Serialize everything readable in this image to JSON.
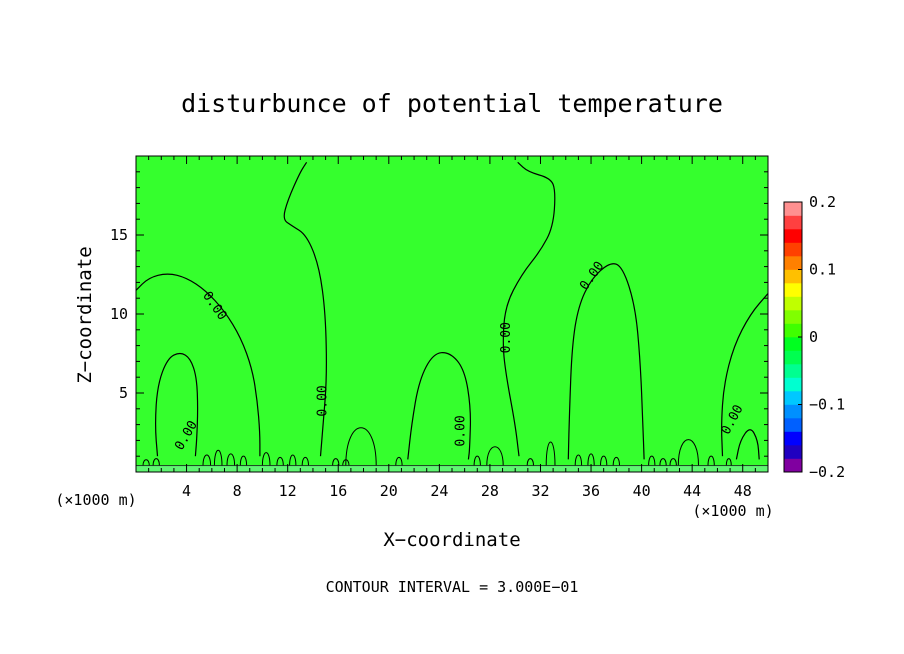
{
  "chart_data": {
    "type": "contour",
    "title": "disturbunce of potential temperature",
    "xlabel": "X−coordinate",
    "ylabel": "Z−coordinate",
    "x_unit": "(×1000 m)",
    "x_unit_right": "(×1000 m)",
    "xlim": [
      0,
      50
    ],
    "ylim": [
      0,
      20
    ],
    "x_ticks": [
      4,
      8,
      12,
      16,
      20,
      24,
      28,
      32,
      36,
      40,
      44,
      48
    ],
    "y_ticks": [
      5,
      10,
      15
    ],
    "footer": "CONTOUR INTERVAL = 3.000E−01",
    "contour_label": "0.00",
    "colorbar": {
      "ticks": [
        {
          "value": 0.2,
          "label": "0.2"
        },
        {
          "value": 0.1,
          "label": "0.1"
        },
        {
          "value": 0,
          "label": "0"
        },
        {
          "value": -0.1,
          "label": "−0.1"
        },
        {
          "value": -0.2,
          "label": "−0.2"
        }
      ],
      "colors": [
        "#8000a0",
        "#2000c0",
        "#0000ff",
        "#0060ff",
        "#0090ff",
        "#00c8ff",
        "#00ffd0",
        "#00ff90",
        "#00ff50",
        "#00ff20",
        "#40ff00",
        "#80ff00",
        "#c0ff00",
        "#ffff00",
        "#ffc000",
        "#ff8000",
        "#ff4000",
        "#ff0000",
        "#ff4040",
        "#ff9090"
      ]
    },
    "background_color": "#35ff2d",
    "contours": [
      {
        "name": "left-arc",
        "points": [
          [
            0,
            11.5
          ],
          [
            1,
            12.3
          ],
          [
            2.5,
            12.6
          ],
          [
            4,
            12.3
          ],
          [
            5.5,
            11.5
          ],
          [
            7,
            10.2
          ],
          [
            8.3,
            8.5
          ],
          [
            9.2,
            6.5
          ],
          [
            9.6,
            4.5
          ],
          [
            9.8,
            2.5
          ],
          [
            9.8,
            1
          ]
        ],
        "labels": [
          {
            "x": 6.2,
            "y": 10.5,
            "angle": 55
          }
        ]
      },
      {
        "name": "loop-4",
        "points": [
          [
            1.7,
            1
          ],
          [
            1.5,
            3
          ],
          [
            1.7,
            5.5
          ],
          [
            2.5,
            7.2
          ],
          [
            3.5,
            7.6
          ],
          [
            4.3,
            7.2
          ],
          [
            4.8,
            6
          ],
          [
            4.9,
            4
          ],
          [
            4.8,
            2
          ],
          [
            4.7,
            1
          ]
        ],
        "labels": [
          {
            "x": 4,
            "y": 2.3,
            "angle": -60
          }
        ]
      },
      {
        "name": "line-14",
        "points": [
          [
            13.5,
            19.6
          ],
          [
            13,
            19
          ],
          [
            12,
            17.2
          ],
          [
            11.6,
            16
          ],
          [
            12.3,
            15.6
          ],
          [
            13.5,
            15
          ],
          [
            14.5,
            13
          ],
          [
            15,
            10
          ],
          [
            15.1,
            6
          ],
          [
            14.8,
            3
          ],
          [
            14.6,
            1
          ]
        ],
        "labels": [
          {
            "x": 14.8,
            "y": 4.5,
            "angle": -90
          }
        ]
      },
      {
        "name": "loop-24",
        "points": [
          [
            21.5,
            0.8
          ],
          [
            21.8,
            3
          ],
          [
            22.4,
            5.8
          ],
          [
            23.5,
            7.5
          ],
          [
            24.8,
            7.6
          ],
          [
            26,
            6.5
          ],
          [
            26.5,
            4
          ],
          [
            26.4,
            1.5
          ],
          [
            26.3,
            0.8
          ]
        ],
        "labels": [
          {
            "x": 25.7,
            "y": 2.6,
            "angle": -90
          }
        ]
      },
      {
        "name": "line-30",
        "points": [
          [
            30.2,
            19.6
          ],
          [
            31,
            19
          ],
          [
            32.8,
            18.6
          ],
          [
            33.2,
            17.8
          ],
          [
            33,
            15.5
          ],
          [
            32,
            14
          ],
          [
            30.5,
            12.5
          ],
          [
            29.2,
            10.5
          ],
          [
            29,
            8
          ],
          [
            29.3,
            6
          ],
          [
            30,
            3
          ],
          [
            30.3,
            1
          ]
        ],
        "labels": [
          {
            "x": 29.3,
            "y": 8.5,
            "angle": -90
          }
        ]
      },
      {
        "name": "loop-38",
        "points": [
          [
            34.2,
            0.8
          ],
          [
            34.3,
            4
          ],
          [
            34.5,
            8
          ],
          [
            35,
            10.5
          ],
          [
            36,
            12.2
          ],
          [
            37.5,
            13.3
          ],
          [
            38.5,
            13
          ],
          [
            39.5,
            10.5
          ],
          [
            39.9,
            7
          ],
          [
            40.1,
            3
          ],
          [
            40.2,
            0.8
          ]
        ],
        "labels": [
          {
            "x": 36.1,
            "y": 12.4,
            "angle": -55
          }
        ]
      },
      {
        "name": "right-arc",
        "points": [
          [
            50,
            11.3
          ],
          [
            48.6,
            10
          ],
          [
            47.3,
            8
          ],
          [
            46.5,
            5.5
          ],
          [
            46.3,
            3
          ],
          [
            46.4,
            1
          ]
        ],
        "labels": [
          {
            "x": 47.2,
            "y": 3.3,
            "angle": -62
          }
        ]
      },
      {
        "name": "loop-48",
        "points": [
          [
            47.5,
            0.8
          ],
          [
            47.8,
            2
          ],
          [
            48.6,
            2.9
          ],
          [
            49.2,
            2
          ],
          [
            49.3,
            0.8
          ]
        ],
        "labels": []
      }
    ],
    "small_bumps": [
      {
        "x": 0.8,
        "w": 0.5,
        "h": 0.5
      },
      {
        "x": 1.6,
        "w": 0.5,
        "h": 0.6
      },
      {
        "x": 5.6,
        "w": 0.6,
        "h": 0.9
      },
      {
        "x": 6.5,
        "w": 0.6,
        "h": 1.3
      },
      {
        "x": 7.5,
        "w": 0.6,
        "h": 1.0
      },
      {
        "x": 8.5,
        "w": 0.5,
        "h": 0.8
      },
      {
        "x": 10.3,
        "w": 0.6,
        "h": 1.1
      },
      {
        "x": 11.4,
        "w": 0.5,
        "h": 0.7
      },
      {
        "x": 12.4,
        "w": 0.5,
        "h": 0.9
      },
      {
        "x": 13.4,
        "w": 0.5,
        "h": 0.7
      },
      {
        "x": 15.8,
        "w": 0.5,
        "h": 0.6
      },
      {
        "x": 16.6,
        "w": 0.5,
        "h": 0.5
      },
      {
        "x": 17.8,
        "w": 2.4,
        "h": 3.2
      },
      {
        "x": 20.8,
        "w": 0.5,
        "h": 0.7
      },
      {
        "x": 27.0,
        "w": 0.5,
        "h": 0.8
      },
      {
        "x": 28.4,
        "w": 1.3,
        "h": 1.6
      },
      {
        "x": 31.2,
        "w": 0.5,
        "h": 0.6
      },
      {
        "x": 32.8,
        "w": 0.7,
        "h": 2.0
      },
      {
        "x": 35.0,
        "w": 0.5,
        "h": 0.9
      },
      {
        "x": 36.0,
        "w": 0.5,
        "h": 1.0
      },
      {
        "x": 37.0,
        "w": 0.5,
        "h": 0.8
      },
      {
        "x": 38.0,
        "w": 0.5,
        "h": 0.7
      },
      {
        "x": 40.8,
        "w": 0.5,
        "h": 0.8
      },
      {
        "x": 41.7,
        "w": 0.5,
        "h": 0.6
      },
      {
        "x": 42.5,
        "w": 0.5,
        "h": 0.6
      },
      {
        "x": 43.7,
        "w": 1.6,
        "h": 2.2
      },
      {
        "x": 45.5,
        "w": 0.5,
        "h": 0.8
      },
      {
        "x": 46.9,
        "w": 0.4,
        "h": 0.6
      }
    ]
  }
}
